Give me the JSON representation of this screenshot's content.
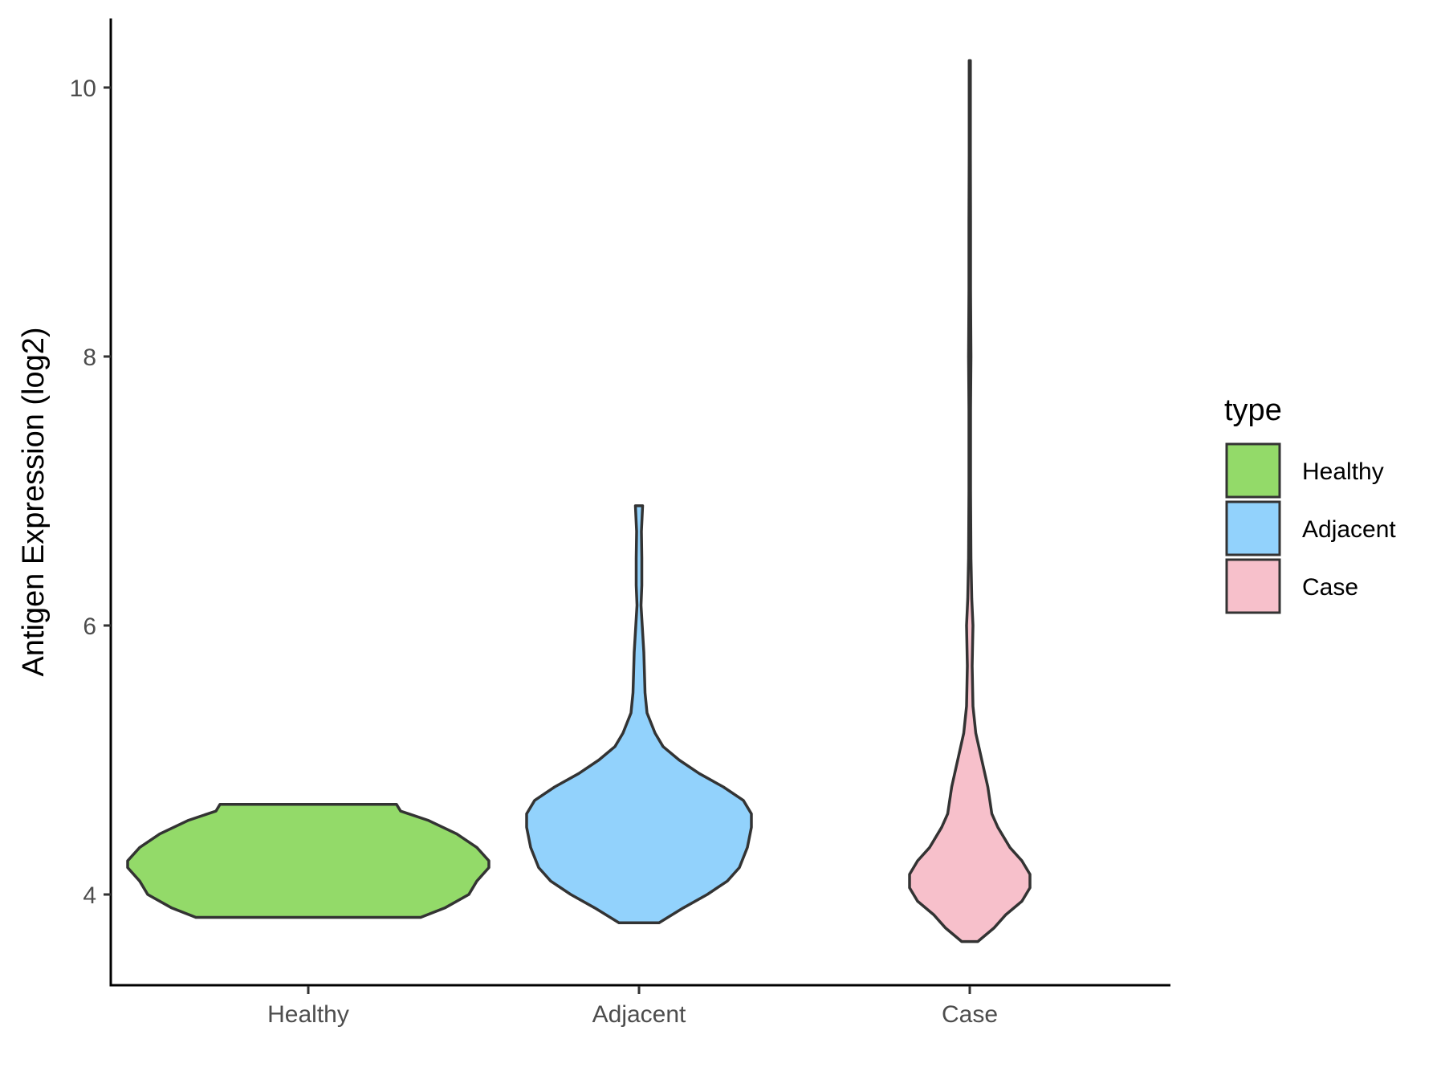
{
  "chart_data": {
    "type": "violin",
    "xlabel": "",
    "ylabel": "Antigen Expression (log2)",
    "categories": [
      "Healthy",
      "Adjacent",
      "Case"
    ],
    "ylim": [
      3.3,
      10.5
    ],
    "yticks": [
      4,
      6,
      8,
      10
    ],
    "grid": false,
    "legend": {
      "title": "type",
      "position": "right",
      "entries": [
        {
          "label": "Healthy",
          "color": "#93DA69"
        },
        {
          "label": "Adjacent",
          "color": "#92D2FC"
        },
        {
          "label": "Case",
          "color": "#F7C0CB"
        }
      ]
    },
    "outline_color": "#333333",
    "series": [
      {
        "category": "Healthy",
        "color": "#93DA69",
        "range": [
          3.83,
          4.67
        ],
        "density": [
          [
            3.83,
            0.28
          ],
          [
            3.9,
            0.34
          ],
          [
            4.0,
            0.4
          ],
          [
            4.1,
            0.42
          ],
          [
            4.2,
            0.45
          ],
          [
            4.25,
            0.45
          ],
          [
            4.35,
            0.42
          ],
          [
            4.45,
            0.37
          ],
          [
            4.55,
            0.3
          ],
          [
            4.62,
            0.23
          ],
          [
            4.67,
            0.22
          ]
        ]
      },
      {
        "category": "Adjacent",
        "color": "#92D2FC",
        "range": [
          3.79,
          6.89
        ],
        "density": [
          [
            3.79,
            0.05
          ],
          [
            3.9,
            0.11
          ],
          [
            4.0,
            0.17
          ],
          [
            4.1,
            0.22
          ],
          [
            4.2,
            0.25
          ],
          [
            4.35,
            0.27
          ],
          [
            4.5,
            0.28
          ],
          [
            4.6,
            0.28
          ],
          [
            4.7,
            0.26
          ],
          [
            4.8,
            0.21
          ],
          [
            4.9,
            0.15
          ],
          [
            5.0,
            0.1
          ],
          [
            5.1,
            0.06
          ],
          [
            5.2,
            0.04
          ],
          [
            5.35,
            0.02
          ],
          [
            5.5,
            0.015
          ],
          [
            5.8,
            0.012
          ],
          [
            6.0,
            0.008
          ],
          [
            6.15,
            0.005
          ],
          [
            6.3,
            0.007
          ],
          [
            6.5,
            0.007
          ],
          [
            6.7,
            0.006
          ],
          [
            6.89,
            0.009
          ]
        ]
      },
      {
        "category": "Case",
        "color": "#F7C0CB",
        "range": [
          3.65,
          10.2
        ],
        "density": [
          [
            3.65,
            0.02
          ],
          [
            3.75,
            0.06
          ],
          [
            3.85,
            0.09
          ],
          [
            3.95,
            0.13
          ],
          [
            4.05,
            0.15
          ],
          [
            4.15,
            0.15
          ],
          [
            4.25,
            0.13
          ],
          [
            4.35,
            0.1
          ],
          [
            4.5,
            0.07
          ],
          [
            4.6,
            0.055
          ],
          [
            4.8,
            0.045
          ],
          [
            5.0,
            0.03
          ],
          [
            5.2,
            0.015
          ],
          [
            5.4,
            0.008
          ],
          [
            5.7,
            0.006
          ],
          [
            6.0,
            0.008
          ],
          [
            6.2,
            0.005
          ],
          [
            6.5,
            0.003
          ],
          [
            7.0,
            0.002
          ],
          [
            7.6,
            0.002
          ],
          [
            8.0,
            0.003
          ],
          [
            8.5,
            0.002
          ],
          [
            9.0,
            0.002
          ],
          [
            9.5,
            0.0015
          ],
          [
            10.2,
            0.0015
          ]
        ]
      }
    ]
  }
}
